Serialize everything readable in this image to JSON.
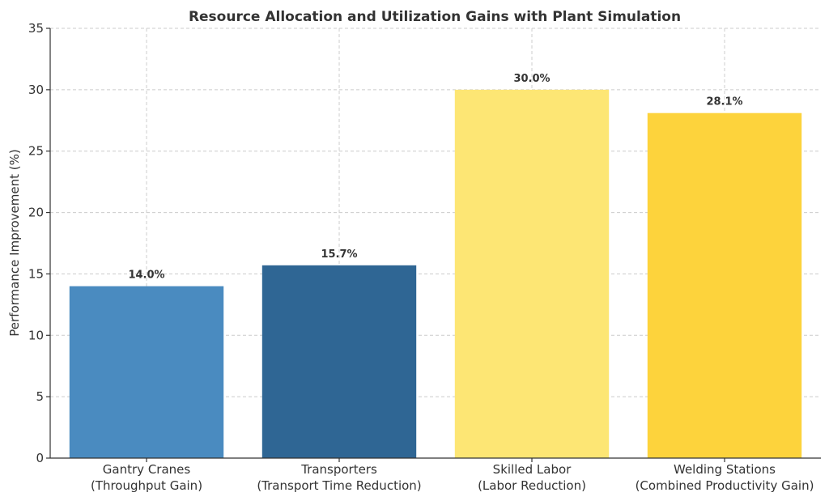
{
  "chart_data": {
    "type": "bar",
    "title": "Resource Allocation and Utilization Gains with Plant Simulation",
    "xlabel": "",
    "ylabel": "Performance Improvement (%)",
    "ylim": [
      0,
      35
    ],
    "yticks": [
      0,
      5,
      10,
      15,
      20,
      25,
      30,
      35
    ],
    "grid": true,
    "categories": [
      [
        "Gantry Cranes",
        "(Throughput Gain)"
      ],
      [
        "Transporters",
        "(Transport Time Reduction)"
      ],
      [
        "Skilled Labor",
        "(Labor Reduction)"
      ],
      [
        "Welding Stations",
        "(Combined Productivity Gain)"
      ]
    ],
    "values": [
      14.0,
      15.7,
      30.0,
      28.1
    ],
    "data_labels": [
      "14.0%",
      "15.7%",
      "30.0%",
      "28.1%"
    ],
    "colors": [
      "#4a8bc0",
      "#2f6694",
      "#fde674",
      "#fdd33c"
    ]
  }
}
